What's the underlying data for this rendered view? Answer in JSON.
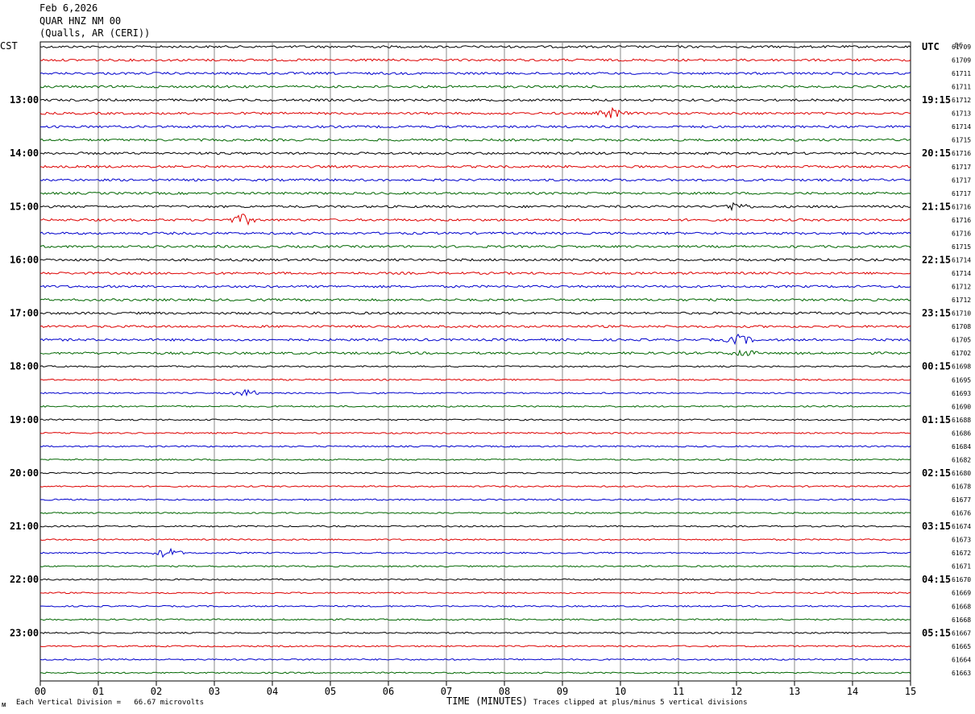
{
  "header": {
    "date": "Feb 6,2026",
    "station": "QUAR HNZ NM 00",
    "location": "(Qualls, AR (CERI))"
  },
  "left_axis_label": "CST",
  "right_axis_label": "UTC",
  "dc_label": "DC",
  "colors": {
    "black": "#000000",
    "red": "#dd0000",
    "blue": "#0000cc",
    "green": "#006600",
    "grid": "#888888"
  },
  "chart_data": {
    "type": "line",
    "title": "QUAR HNZ NM 00",
    "xlabel": "TIME (MINUTES)",
    "x_ticks": [
      "00",
      "01",
      "02",
      "03",
      "04",
      "05",
      "06",
      "07",
      "08",
      "09",
      "10",
      "11",
      "12",
      "13",
      "14",
      "15"
    ],
    "xlim": [
      0,
      15
    ],
    "trace_count": 48,
    "trace_colors_cycle": [
      "black",
      "red",
      "blue",
      "green"
    ],
    "left_hour_labels": [
      {
        "trace": 4,
        "label": "13:00"
      },
      {
        "trace": 8,
        "label": "14:00"
      },
      {
        "trace": 12,
        "label": "15:00"
      },
      {
        "trace": 16,
        "label": "16:00"
      },
      {
        "trace": 20,
        "label": "17:00"
      },
      {
        "trace": 24,
        "label": "18:00"
      },
      {
        "trace": 28,
        "label": "19:00"
      },
      {
        "trace": 32,
        "label": "20:00"
      },
      {
        "trace": 36,
        "label": "21:00"
      },
      {
        "trace": 40,
        "label": "22:00"
      },
      {
        "trace": 44,
        "label": "23:00"
      }
    ],
    "right_hour_labels": [
      {
        "trace": 0,
        "label": "UTC"
      },
      {
        "trace": 4,
        "label": "19:15"
      },
      {
        "trace": 8,
        "label": "20:15"
      },
      {
        "trace": 12,
        "label": "21:15"
      },
      {
        "trace": 16,
        "label": "22:15"
      },
      {
        "trace": 20,
        "label": "23:15"
      },
      {
        "trace": 24,
        "label": "00:15"
      },
      {
        "trace": 28,
        "label": "01:15"
      },
      {
        "trace": 32,
        "label": "02:15"
      },
      {
        "trace": 36,
        "label": "03:15"
      },
      {
        "trace": 40,
        "label": "04:15"
      },
      {
        "trace": 44,
        "label": "05:15"
      }
    ],
    "dc_offsets": [
      "61709",
      "61709",
      "61711",
      "61711",
      "61712",
      "61713",
      "61714",
      "61715",
      "61716",
      "61717",
      "61717",
      "61717",
      "61716",
      "61716",
      "61716",
      "61715",
      "61714",
      "61714",
      "61712",
      "61712",
      "61710",
      "61708",
      "61705",
      "61702",
      "61698",
      "61695",
      "61693",
      "61690",
      "61688",
      "61686",
      "61684",
      "61682",
      "61680",
      "61678",
      "61677",
      "61676",
      "61674",
      "61673",
      "61672",
      "61671",
      "61670",
      "61669",
      "61668",
      "61668",
      "61667",
      "61665",
      "61664",
      "61663"
    ],
    "events": [
      {
        "trace": 5,
        "minute": 9.85,
        "amplitude": 6
      },
      {
        "trace": 13,
        "minute": 3.5,
        "amplitude": 6
      },
      {
        "trace": 12,
        "minute": 12.0,
        "amplitude": 5
      },
      {
        "trace": 22,
        "minute": 12.05,
        "amplitude": 6
      },
      {
        "trace": 23,
        "minute": 12.1,
        "amplitude": 4
      },
      {
        "trace": 26,
        "minute": 3.55,
        "amplitude": 4
      },
      {
        "trace": 38,
        "minute": 2.2,
        "amplitude": 6
      }
    ]
  },
  "footer": {
    "scale_note": "Each Vertical Division =   66.67 microvolts",
    "clip_note": "Traces clipped at plus/minus 5 vertical divisions",
    "corner_mark": "ᴍ"
  }
}
